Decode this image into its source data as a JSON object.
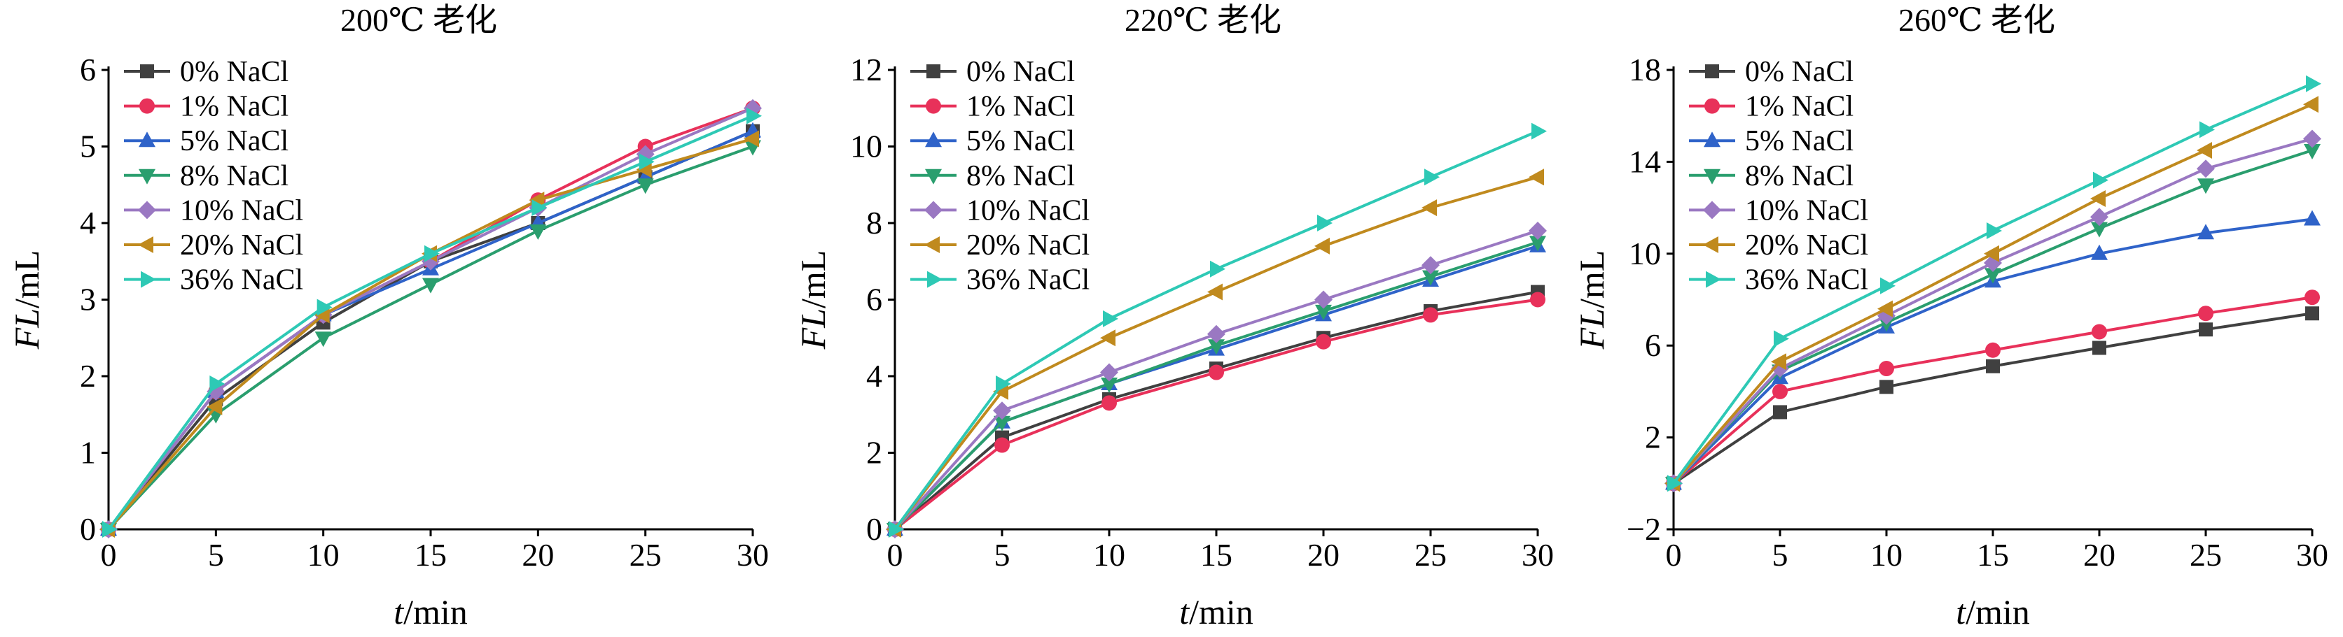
{
  "chart_data": [
    {
      "type": "line",
      "title": "200℃ 老化",
      "xlabel_var": "t",
      "xlabel_unit": "/min",
      "ylabel_var": "FL",
      "ylabel_unit": "/mL",
      "x": [
        0,
        5,
        10,
        15,
        20,
        25,
        30
      ],
      "xticks": [
        0,
        5,
        10,
        15,
        20,
        25,
        30
      ],
      "xlim": [
        0,
        30
      ],
      "ylim": [
        0,
        6
      ],
      "yticks": [
        0,
        1,
        2,
        3,
        4,
        5,
        6
      ],
      "series": [
        {
          "name": "0% NaCl",
          "values": [
            0,
            1.7,
            2.7,
            3.5,
            4.0,
            4.6,
            5.2
          ]
        },
        {
          "name": "1% NaCl",
          "values": [
            0,
            1.8,
            2.8,
            3.5,
            4.3,
            5.0,
            5.5
          ]
        },
        {
          "name": "5% NaCl",
          "values": [
            0,
            1.8,
            2.8,
            3.4,
            4.0,
            4.6,
            5.2
          ]
        },
        {
          "name": "8% NaCl",
          "values": [
            0,
            1.5,
            2.5,
            3.2,
            3.9,
            4.5,
            5.0
          ]
        },
        {
          "name": "10% NaCl",
          "values": [
            0,
            1.8,
            2.8,
            3.5,
            4.2,
            4.9,
            5.5
          ]
        },
        {
          "name": "20% NaCl",
          "values": [
            0,
            1.6,
            2.8,
            3.6,
            4.3,
            4.7,
            5.1
          ]
        },
        {
          "name": "36% NaCl",
          "values": [
            0,
            1.9,
            2.9,
            3.6,
            4.2,
            4.8,
            5.4
          ]
        }
      ]
    },
    {
      "type": "line",
      "title": "220℃ 老化",
      "xlabel_var": "t",
      "xlabel_unit": "/min",
      "ylabel_var": "FL",
      "ylabel_unit": "/mL",
      "x": [
        0,
        5,
        10,
        15,
        20,
        25,
        30
      ],
      "xticks": [
        0,
        5,
        10,
        15,
        20,
        25,
        30
      ],
      "xlim": [
        0,
        30
      ],
      "ylim": [
        0,
        12
      ],
      "yticks": [
        0,
        2,
        4,
        6,
        8,
        10,
        12
      ],
      "series": [
        {
          "name": "0% NaCl",
          "values": [
            0,
            2.4,
            3.4,
            4.2,
            5.0,
            5.7,
            6.2
          ]
        },
        {
          "name": "1% NaCl",
          "values": [
            0,
            2.2,
            3.3,
            4.1,
            4.9,
            5.6,
            6.0
          ]
        },
        {
          "name": "5% NaCl",
          "values": [
            0,
            2.8,
            3.8,
            4.7,
            5.6,
            6.5,
            7.4
          ]
        },
        {
          "name": "8% NaCl",
          "values": [
            0,
            2.8,
            3.8,
            4.8,
            5.7,
            6.6,
            7.5
          ]
        },
        {
          "name": "10% NaCl",
          "values": [
            0,
            3.1,
            4.1,
            5.1,
            6.0,
            6.9,
            7.8
          ]
        },
        {
          "name": "20% NaCl",
          "values": [
            0,
            3.6,
            5.0,
            6.2,
            7.4,
            8.4,
            9.2
          ]
        },
        {
          "name": "36% NaCl",
          "values": [
            0,
            3.8,
            5.5,
            6.8,
            8.0,
            9.2,
            10.4
          ]
        }
      ]
    },
    {
      "type": "line",
      "title": "260℃ 老化",
      "xlabel_var": "t",
      "xlabel_unit": "/min",
      "ylabel_var": "FL",
      "ylabel_unit": "/mL",
      "x": [
        0,
        5,
        10,
        15,
        20,
        25,
        30
      ],
      "xticks": [
        0,
        5,
        10,
        15,
        20,
        25,
        30
      ],
      "xlim": [
        0,
        30
      ],
      "ylim": [
        -2,
        18
      ],
      "yticks": [
        -2,
        2,
        6,
        10,
        14,
        18
      ],
      "ytick_labels": [
        "−2",
        "2",
        "6",
        "10",
        "14",
        "18"
      ],
      "series": [
        {
          "name": "0% NaCl",
          "values": [
            0,
            3.1,
            4.2,
            5.1,
            5.9,
            6.7,
            7.4
          ]
        },
        {
          "name": "1% NaCl",
          "values": [
            0,
            4.0,
            5.0,
            5.8,
            6.6,
            7.4,
            8.1
          ]
        },
        {
          "name": "5% NaCl",
          "values": [
            0,
            4.6,
            6.8,
            8.8,
            10.0,
            10.9,
            11.5
          ]
        },
        {
          "name": "8% NaCl",
          "values": [
            0,
            4.9,
            7.0,
            9.1,
            11.1,
            13.0,
            14.5
          ]
        },
        {
          "name": "10% NaCl",
          "values": [
            0,
            5.0,
            7.3,
            9.6,
            11.6,
            13.7,
            15.0
          ]
        },
        {
          "name": "20% NaCl",
          "values": [
            0,
            5.3,
            7.6,
            10.0,
            12.4,
            14.5,
            16.5
          ]
        },
        {
          "name": "36% NaCl",
          "values": [
            0,
            6.3,
            8.6,
            11.0,
            13.2,
            15.4,
            17.4
          ]
        }
      ]
    }
  ],
  "styles": {
    "series_colors": [
      "#404040",
      "#e8315a",
      "#2f63c9",
      "#2a9e6e",
      "#9a78c2",
      "#c08a1e",
      "#2ec9b5"
    ],
    "series_markers": [
      "square",
      "circle",
      "triangle-up",
      "triangle-down",
      "diamond",
      "triangle-left",
      "triangle-right"
    ]
  }
}
